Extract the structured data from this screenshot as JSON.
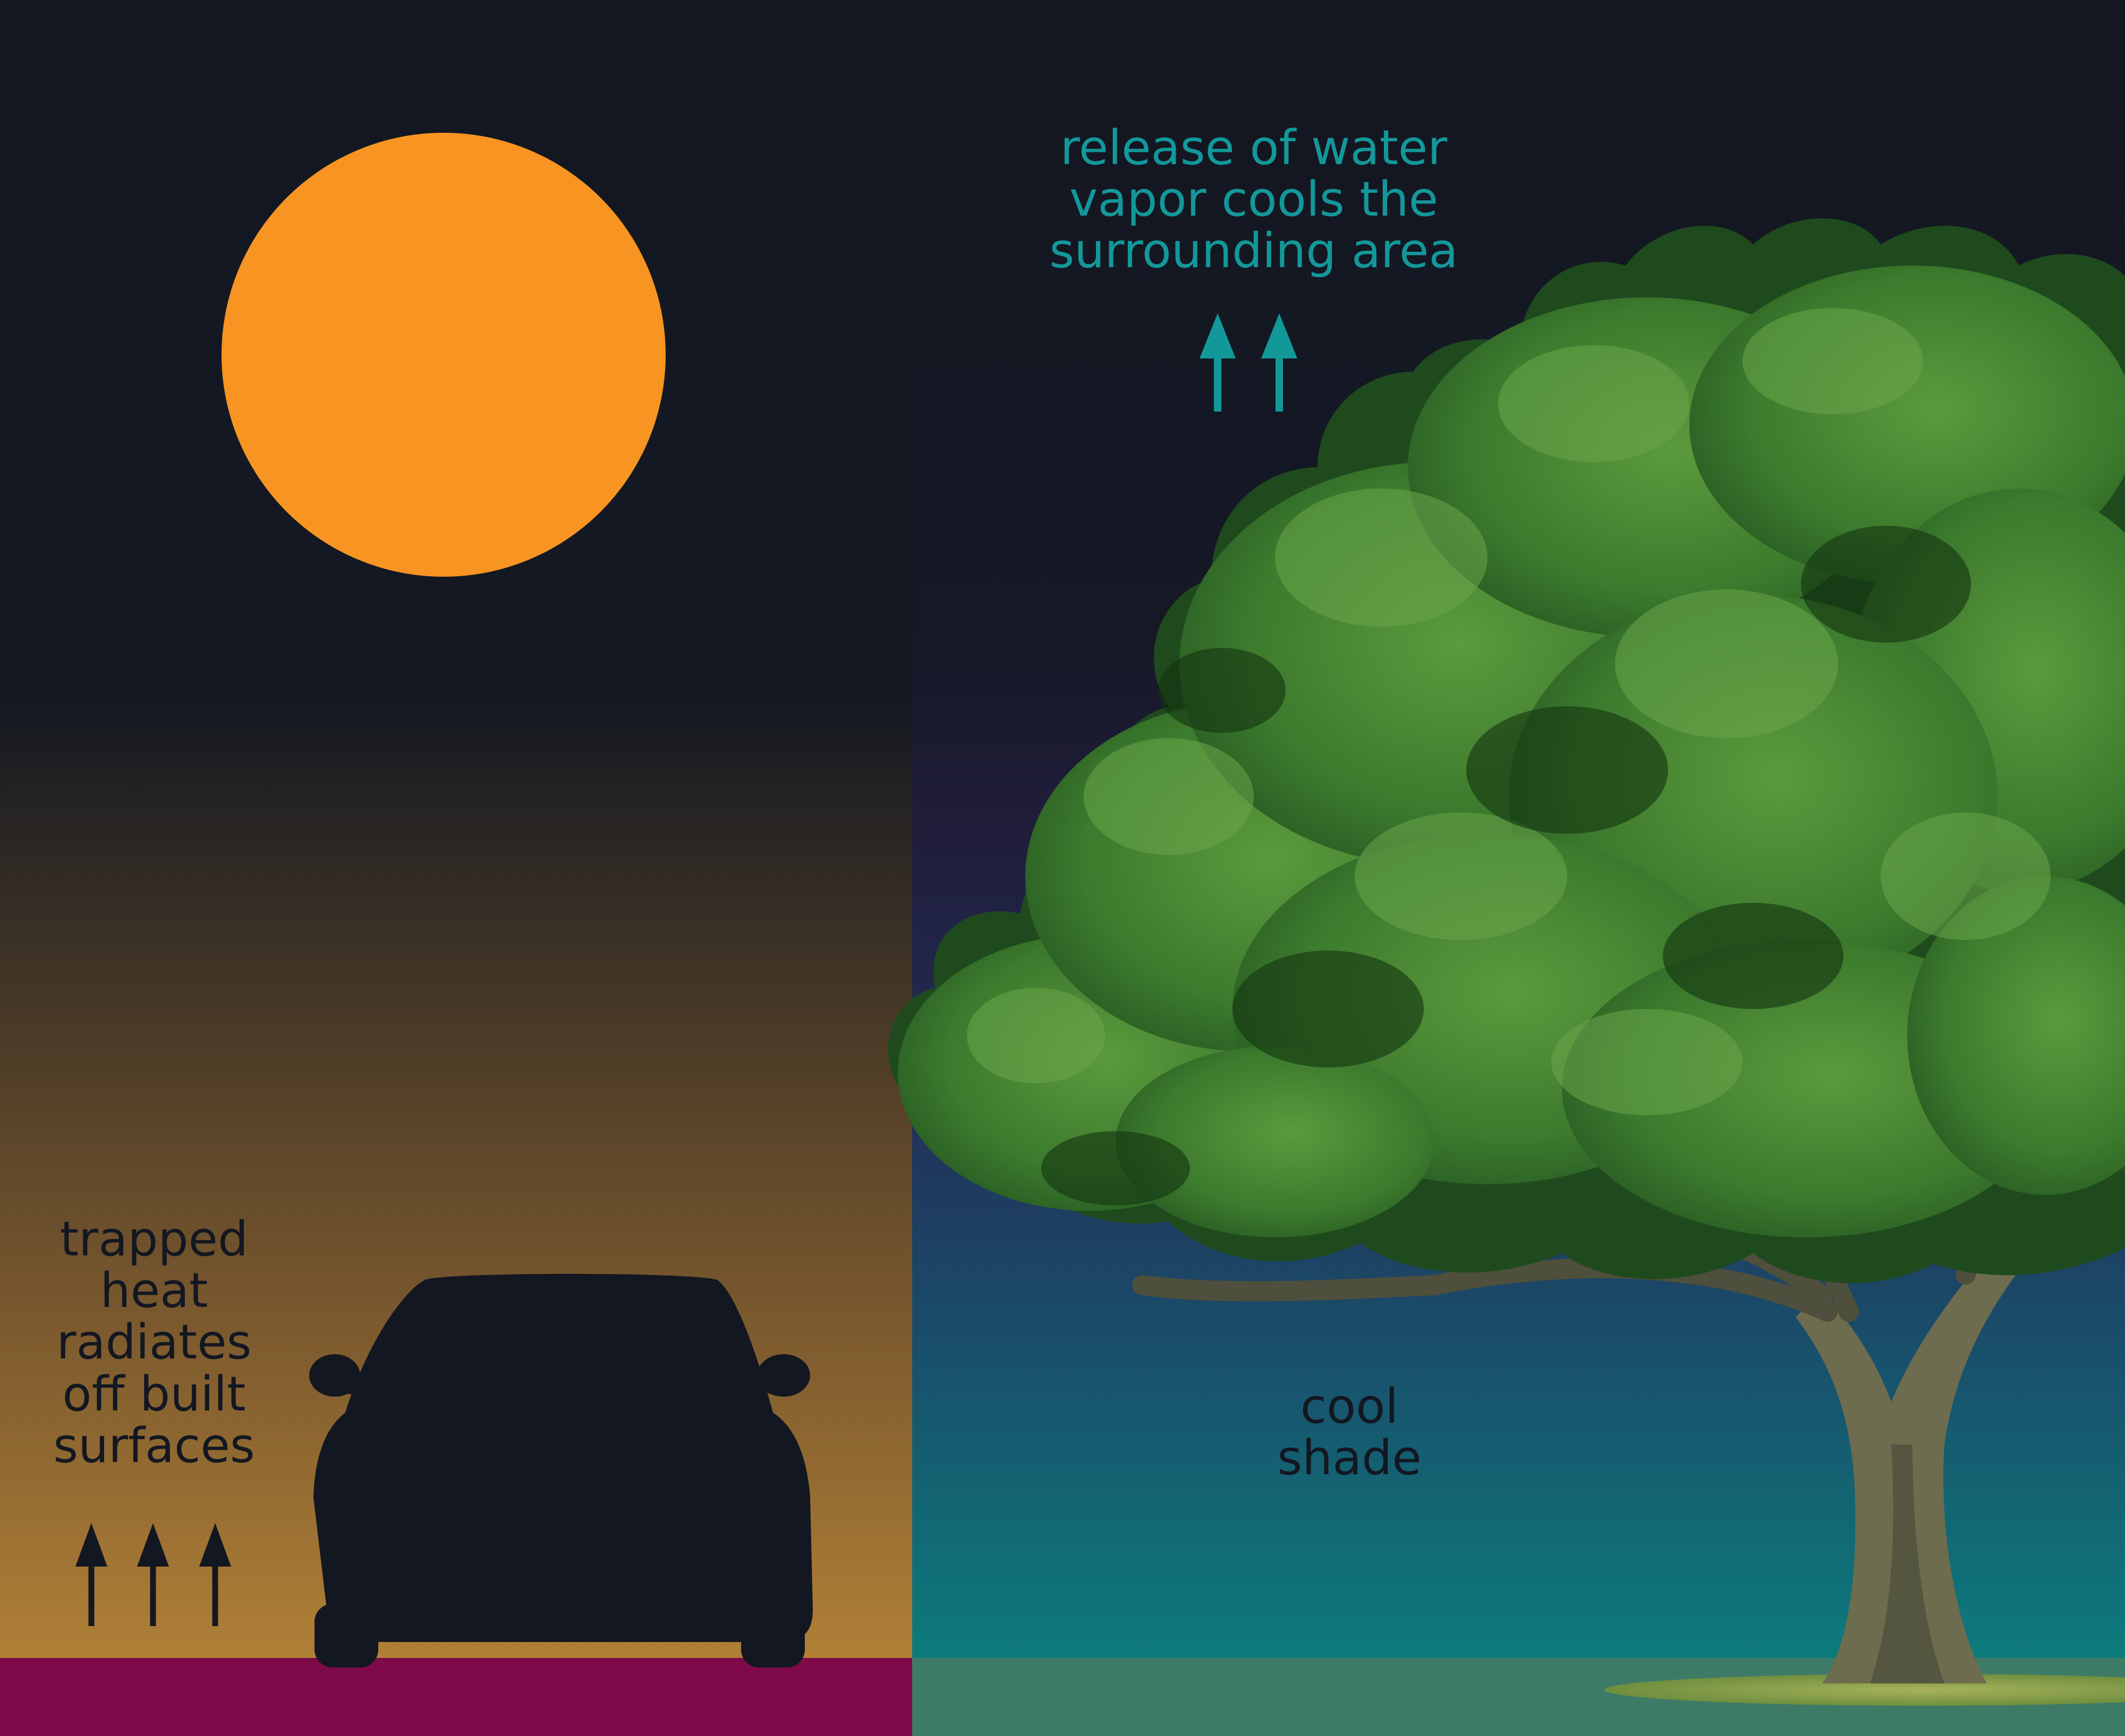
{
  "diagram": {
    "vapor_label": {
      "line1": "release of water",
      "line2": "vapor cools the",
      "line3": "surrounding area"
    },
    "heat_label": {
      "line1": "trapped",
      "line2": "heat",
      "line3": "radiates",
      "line4": "off built",
      "line5": "surfaces"
    },
    "shade_label": {
      "line1": "cool",
      "line2": "shade"
    },
    "colors": {
      "night_sky": "#131721",
      "sun": "#f79422",
      "heat_glow": "#ad7e35",
      "pavement": "#7e0a4a",
      "cool_teal": "#0e7c7d",
      "grass": "#3d7b66",
      "vapor_arrow": "#13989a",
      "heat_arrow": "#131721",
      "car": "#131721",
      "foliage": "#3f7a2c",
      "trunk": "#6a6a4e"
    },
    "icons": [
      "sun-icon",
      "car-icon",
      "tree-icon",
      "up-arrow-icon"
    ]
  }
}
